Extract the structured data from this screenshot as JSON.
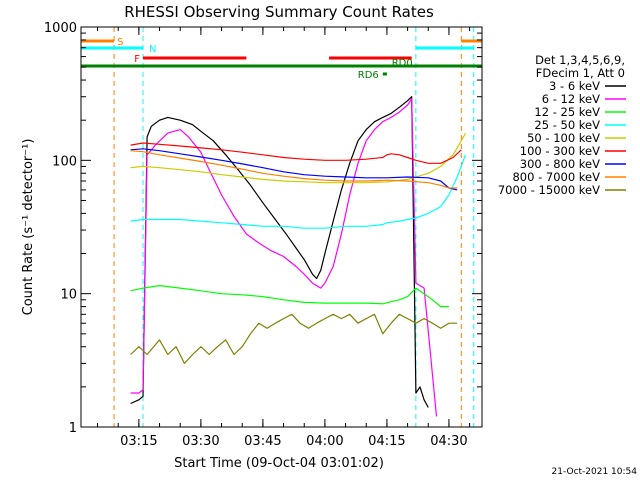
{
  "chart_data": {
    "type": "line",
    "title": "RHESSI Observing Summary Count Rates",
    "xlabel": "Start Time (09-Oct-04 03:01:02)",
    "ylabel": "Count Rate (s⁻¹ detector⁻¹)",
    "yscale": "log",
    "xlim": [
      "03:01",
      "04:38"
    ],
    "ylim": [
      1,
      1000
    ],
    "x_ticks": [
      "03:15",
      "03:30",
      "03:45",
      "04:00",
      "04:15",
      "04:30"
    ],
    "y_ticks": [
      "1",
      "10",
      "100",
      "1000"
    ],
    "legend_header": [
      "Det 1,3,4,5,6,9,",
      "FDecim 1, Att 0"
    ],
    "legend_placement": "right",
    "footer_date": "21-Oct-2021 10:54",
    "flags": [
      {
        "label": "S",
        "color": "#ff8000",
        "segments": [
          [
            "03:01",
            "03:09"
          ],
          [
            "04:33",
            "04:38"
          ]
        ]
      },
      {
        "label": "N",
        "color": "#00ffff",
        "segments": [
          [
            "03:01",
            "03:16"
          ],
          [
            "04:22",
            "04:36"
          ]
        ]
      },
      {
        "label": "F",
        "color": "#ff0000",
        "segments": [
          [
            "03:16",
            "03:41"
          ],
          [
            "04:01",
            "04:21"
          ]
        ]
      },
      {
        "label": "RD0",
        "color": "#008000",
        "segments": [
          [
            "03:01",
            "04:38"
          ]
        ]
      },
      {
        "label": "RD6",
        "color": "#008000",
        "segments": [
          [
            "04:14",
            "04:15"
          ]
        ]
      }
    ],
    "vertical_markers": [
      {
        "time": "03:09",
        "color": "#ff8000"
      },
      {
        "time": "03:16",
        "color": "#00ffff"
      },
      {
        "time": "04:22",
        "color": "#00ffff"
      },
      {
        "time": "04:33",
        "color": "#ff8000"
      },
      {
        "time": "04:36",
        "color": "#00ffff"
      }
    ],
    "series": [
      {
        "name": "3 - 6 keV",
        "color": "#000000",
        "x": [
          "03:13",
          "03:15",
          "03:16",
          "03:17",
          "03:18",
          "03:20",
          "03:22",
          "03:25",
          "03:28",
          "03:30",
          "03:33",
          "03:36",
          "03:39",
          "03:42",
          "03:45",
          "03:48",
          "03:51",
          "03:53",
          "03:55",
          "03:57",
          "03:58",
          "03:59",
          "04:00",
          "04:02",
          "04:04",
          "04:06",
          "04:08",
          "04:10",
          "04:12",
          "04:14",
          "04:16",
          "04:18",
          "04:20",
          "04:21",
          "04:22",
          "04:23",
          "04:24",
          "04:25"
        ],
        "values": [
          1.5,
          1.6,
          1.7,
          150,
          180,
          200,
          210,
          200,
          185,
          165,
          140,
          110,
          85,
          65,
          48,
          36,
          27,
          22,
          18,
          14,
          13,
          15,
          20,
          35,
          60,
          95,
          140,
          170,
          195,
          210,
          225,
          250,
          280,
          300,
          1.8,
          2,
          1.6,
          1.4
        ]
      },
      {
        "name": "6 - 12 keV",
        "color": "#ff00ff",
        "x": [
          "03:13",
          "03:15",
          "03:16",
          "03:17",
          "03:19",
          "03:22",
          "03:25",
          "03:27",
          "03:30",
          "03:32",
          "03:35",
          "03:38",
          "03:41",
          "03:44",
          "03:47",
          "03:50",
          "03:53",
          "03:55",
          "03:57",
          "03:59",
          "04:00",
          "04:02",
          "04:04",
          "04:06",
          "04:08",
          "04:10",
          "04:12",
          "04:14",
          "04:16",
          "04:18",
          "04:20",
          "04:21",
          "04:22",
          "04:24",
          "04:27"
        ],
        "values": [
          1.8,
          1.8,
          1.9,
          110,
          130,
          160,
          170,
          150,
          115,
          85,
          55,
          38,
          28,
          24,
          21,
          19,
          16,
          14,
          12,
          11,
          12,
          16,
          28,
          55,
          95,
          140,
          170,
          195,
          210,
          230,
          260,
          290,
          12,
          11,
          1.2
        ]
      },
      {
        "name": "12 - 25 keV",
        "color": "#00ff00",
        "x": [
          "03:13",
          "03:16",
          "03:20",
          "03:25",
          "03:30",
          "03:35",
          "03:40",
          "03:45",
          "03:50",
          "03:55",
          "04:00",
          "04:05",
          "04:10",
          "04:14",
          "04:16",
          "04:18",
          "04:20",
          "04:22",
          "04:24",
          "04:26",
          "04:28",
          "04:30"
        ],
        "values": [
          10.5,
          11,
          11.5,
          11,
          10.5,
          10,
          9.8,
          9.5,
          9,
          8.6,
          8.5,
          8.5,
          8.5,
          8.4,
          8.7,
          9,
          9.5,
          11,
          10,
          9,
          8,
          8
        ]
      },
      {
        "name": "25 - 50 keV",
        "color": "#00ffff",
        "x": [
          "03:13",
          "03:16",
          "03:20",
          "03:25",
          "03:30",
          "03:35",
          "03:40",
          "03:45",
          "03:50",
          "03:55",
          "04:00",
          "04:05",
          "04:10",
          "04:14",
          "04:15",
          "04:18",
          "04:22",
          "04:25",
          "04:28",
          "04:30",
          "04:32",
          "04:34"
        ],
        "values": [
          35,
          36,
          36,
          36,
          35,
          34,
          33,
          32,
          32,
          31,
          31,
          32,
          32,
          33,
          34,
          35,
          37,
          40,
          45,
          55,
          75,
          110
        ]
      },
      {
        "name": "50 - 100 keV",
        "color": "#cccc00",
        "x": [
          "03:13",
          "03:16",
          "03:20",
          "03:25",
          "03:30",
          "03:35",
          "03:40",
          "03:45",
          "03:50",
          "03:55",
          "04:00",
          "04:05",
          "04:10",
          "04:15",
          "04:20",
          "04:25",
          "04:28",
          "04:31",
          "04:33",
          "04:34"
        ],
        "values": [
          88,
          90,
          88,
          85,
          82,
          78,
          75,
          72,
          70,
          69,
          68,
          68,
          68,
          69,
          72,
          80,
          90,
          110,
          140,
          160
        ]
      },
      {
        "name": "100 - 300 keV",
        "color": "#ff0000",
        "x": [
          "03:13",
          "03:16",
          "03:20",
          "03:25",
          "03:30",
          "03:35",
          "03:40",
          "03:45",
          "03:50",
          "03:55",
          "04:00",
          "04:05",
          "04:10",
          "04:14",
          "04:15",
          "04:16",
          "04:18",
          "04:20",
          "04:22",
          "04:25",
          "04:28",
          "04:31",
          "04:33"
        ],
        "values": [
          130,
          135,
          132,
          128,
          124,
          120,
          115,
          110,
          105,
          102,
          100,
          100,
          102,
          105,
          110,
          112,
          110,
          105,
          100,
          95,
          95,
          105,
          120
        ]
      },
      {
        "name": "300 - 800 keV",
        "color": "#0000ff",
        "x": [
          "03:13",
          "03:16",
          "03:20",
          "03:25",
          "03:30",
          "03:35",
          "03:40",
          "03:45",
          "03:50",
          "03:55",
          "04:00",
          "04:05",
          "04:10",
          "04:15",
          "04:20",
          "04:25",
          "04:28",
          "04:30",
          "04:32"
        ],
        "values": [
          120,
          122,
          118,
          112,
          106,
          100,
          94,
          88,
          82,
          78,
          76,
          75,
          74,
          74,
          75,
          74,
          70,
          62,
          60
        ]
      },
      {
        "name": "800 - 7000 keV",
        "color": "#ff8000",
        "x": [
          "03:13",
          "03:16",
          "03:20",
          "03:25",
          "03:30",
          "03:35",
          "03:40",
          "03:45",
          "03:50",
          "03:55",
          "04:00",
          "04:05",
          "04:10",
          "04:15",
          "04:20",
          "04:25",
          "04:28",
          "04:30",
          "04:32"
        ],
        "values": [
          118,
          116,
          110,
          104,
          98,
          92,
          86,
          80,
          76,
          73,
          71,
          70,
          70,
          71,
          70,
          68,
          65,
          62,
          62
        ]
      },
      {
        "name": "7000 - 15000 keV",
        "color": "#808000",
        "x": [
          "03:13",
          "03:15",
          "03:17",
          "03:20",
          "03:22",
          "03:24",
          "03:26",
          "03:28",
          "03:30",
          "03:32",
          "03:34",
          "03:36",
          "03:38",
          "03:40",
          "03:42",
          "03:44",
          "03:46",
          "03:48",
          "03:50",
          "03:52",
          "03:54",
          "03:56",
          "03:58",
          "04:00",
          "04:02",
          "04:04",
          "04:06",
          "04:08",
          "04:10",
          "04:12",
          "04:14",
          "04:16",
          "04:18",
          "04:20",
          "04:22",
          "04:24",
          "04:26",
          "04:28",
          "04:30",
          "04:32"
        ],
        "values": [
          3.5,
          4,
          3.5,
          4.5,
          3.5,
          4,
          3,
          3.5,
          4,
          3.5,
          4,
          4.5,
          3.5,
          4,
          5,
          6,
          5.5,
          6,
          6.5,
          7,
          6,
          5.5,
          6,
          6.5,
          7,
          6.5,
          7,
          6,
          6.5,
          7,
          5,
          6,
          7,
          6.5,
          6,
          6.5,
          6,
          5.5,
          6,
          6
        ]
      }
    ]
  }
}
